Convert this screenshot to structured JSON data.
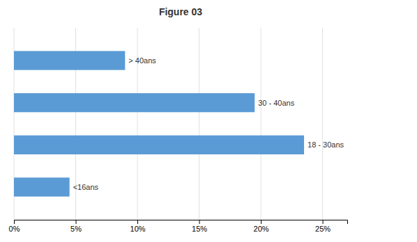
{
  "chart_data": {
    "type": "bar",
    "orientation": "horizontal",
    "title": "Figure 03",
    "categories": [
      "<16ans",
      "18 - 30ans",
      "30 - 40ans",
      "> 40ans"
    ],
    "values": [
      4.5,
      23.5,
      19.5,
      9.0
    ],
    "color": "#5b9bd5",
    "xlim": [
      0,
      27
    ],
    "xticks": [
      {
        "value": 0,
        "label": "0%"
      },
      {
        "value": 5,
        "label": "5%"
      },
      {
        "value": 10,
        "label": "10%"
      },
      {
        "value": 15,
        "label": "15%"
      },
      {
        "value": 20,
        "label": "20%"
      },
      {
        "value": 25,
        "label": "25%"
      }
    ],
    "grid": true,
    "tick_labels": "x"
  }
}
